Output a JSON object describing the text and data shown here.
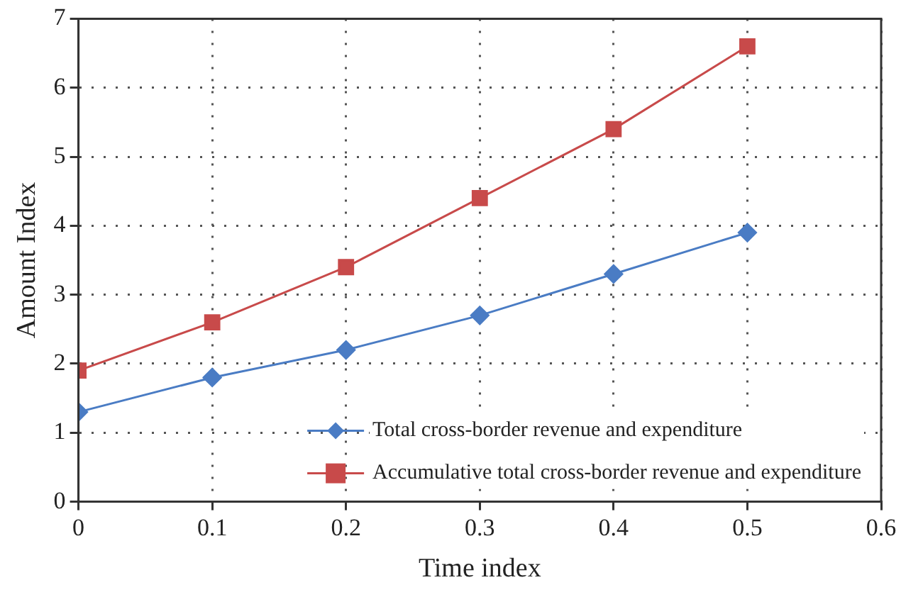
{
  "chart_data": {
    "type": "line",
    "xlabel": "Time index",
    "ylabel": "Amount Index",
    "x": [
      0,
      0.1,
      0.2,
      0.3,
      0.4,
      0.5
    ],
    "series": [
      {
        "name": "Total cross-border revenue and expenditure",
        "color": "#4a7cc4",
        "marker": "diamond",
        "values": [
          1.3,
          1.8,
          2.2,
          2.7,
          3.3,
          3.9
        ]
      },
      {
        "name": "Accumulative total cross-border revenue and expenditure",
        "color": "#c84a4a",
        "marker": "square",
        "values": [
          1.9,
          2.6,
          3.4,
          4.4,
          5.4,
          6.6
        ]
      }
    ],
    "xlim": [
      0,
      0.6
    ],
    "xticks": [
      0,
      0.1,
      0.2,
      0.3,
      0.4,
      0.5,
      0.6
    ],
    "ylim": [
      0,
      7
    ],
    "yticks": [
      0,
      1,
      2,
      3,
      4,
      5,
      6,
      7
    ],
    "grid": true,
    "legend": "bottom right",
    "line_style": "solid"
  }
}
